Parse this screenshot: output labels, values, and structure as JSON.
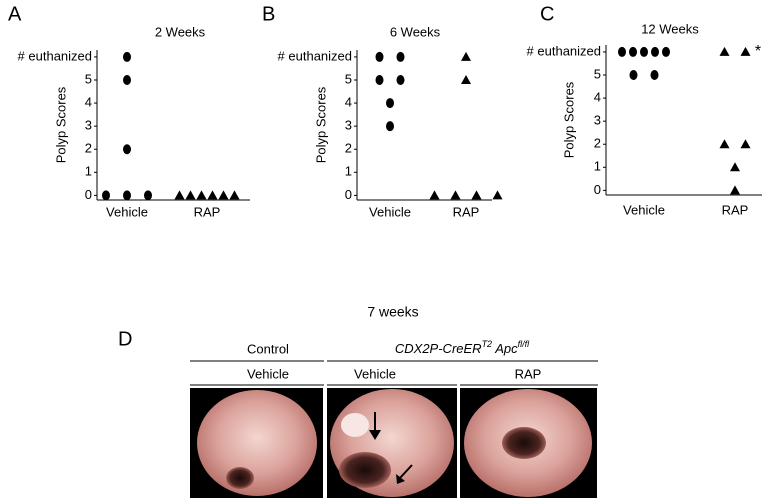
{
  "chart_data": [
    {
      "type": "dot",
      "panel_label": "A",
      "title": "2 Weeks",
      "ylabel": "Polyp Scores",
      "categories": [
        "Vehicle",
        "RAP"
      ],
      "markers": [
        "circle",
        "triangle"
      ],
      "color": "#000000",
      "values": [
        [
          6,
          5,
          2,
          0,
          0,
          0
        ],
        [
          0,
          0,
          0,
          0,
          0,
          0
        ]
      ],
      "ylim": [
        -0.2,
        6.3
      ],
      "yticks": [
        0,
        1,
        2,
        3,
        4,
        5,
        {
          "value": 6,
          "label": "# euthanized"
        }
      ]
    },
    {
      "type": "dot",
      "panel_label": "B",
      "title": "6 Weeks",
      "ylabel": "Polyp Scores",
      "categories": [
        "Vehicle",
        "RAP"
      ],
      "markers": [
        "circle",
        "triangle"
      ],
      "color": "#000000",
      "values": [
        [
          6,
          6,
          5,
          5,
          4,
          3
        ],
        [
          6,
          5,
          0,
          0,
          0,
          0
        ]
      ],
      "ylim": [
        -0.2,
        6.3
      ],
      "yticks": [
        0,
        1,
        2,
        3,
        4,
        5,
        {
          "value": 6,
          "label": "# euthanized"
        }
      ]
    },
    {
      "type": "dot",
      "panel_label": "C",
      "title": "12 Weeks",
      "ylabel": "Polyp Scores",
      "annotation": "*",
      "categories": [
        "Vehicle",
        "RAP"
      ],
      "markers": [
        "circle",
        "triangle"
      ],
      "color": "#000000",
      "values": [
        [
          6,
          6,
          6,
          6,
          6,
          5,
          5
        ],
        [
          6,
          6,
          2,
          2,
          1,
          0
        ]
      ],
      "ylim": [
        -0.2,
        6.3
      ],
      "yticks": [
        0,
        1,
        2,
        3,
        4,
        5,
        {
          "value": 6,
          "label": "# euthanized"
        }
      ]
    }
  ],
  "panel_d": {
    "panel_label": "D",
    "title": "7 weeks",
    "control": "Control",
    "genotype": [
      "CDX2P-CreER",
      "T2",
      " Apc",
      "fl/fl"
    ],
    "columns": [
      "Vehicle",
      "Vehicle",
      "RAP"
    ]
  }
}
